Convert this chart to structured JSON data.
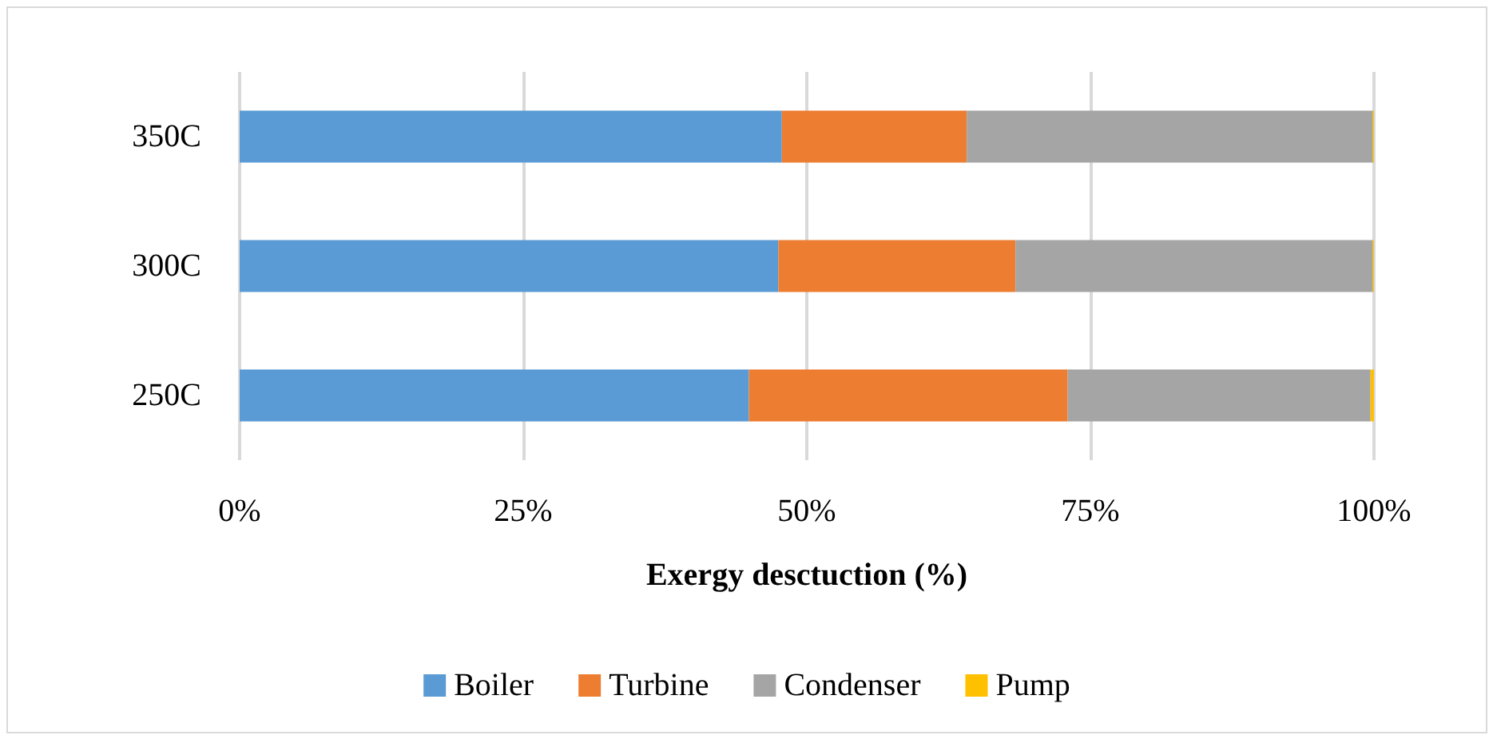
{
  "chart_data": {
    "type": "bar",
    "orientation": "horizontal",
    "stacked": true,
    "xlabel": "Exergy desctuction (%)",
    "categories": [
      "350C",
      "300C",
      "250C"
    ],
    "series": [
      {
        "name": "Boiler",
        "color": "#5b9bd5",
        "values": [
          47.8,
          47.5,
          44.9
        ]
      },
      {
        "name": "Turbine",
        "color": "#ed7d31",
        "values": [
          16.3,
          20.9,
          28.1
        ]
      },
      {
        "name": "Condenser",
        "color": "#a5a5a5",
        "values": [
          35.8,
          31.5,
          26.7
        ]
      },
      {
        "name": "Pump",
        "color": "#ffc000",
        "values": [
          0.1,
          0.1,
          0.3
        ]
      }
    ],
    "xlim": [
      0,
      100
    ],
    "xticks": [
      {
        "value": 0,
        "label": "0%"
      },
      {
        "value": 25,
        "label": "25%"
      },
      {
        "value": 50,
        "label": "50%"
      },
      {
        "value": 75,
        "label": "75%"
      },
      {
        "value": 100,
        "label": "100%"
      }
    ],
    "grid": "x",
    "legend": "bottom"
  }
}
